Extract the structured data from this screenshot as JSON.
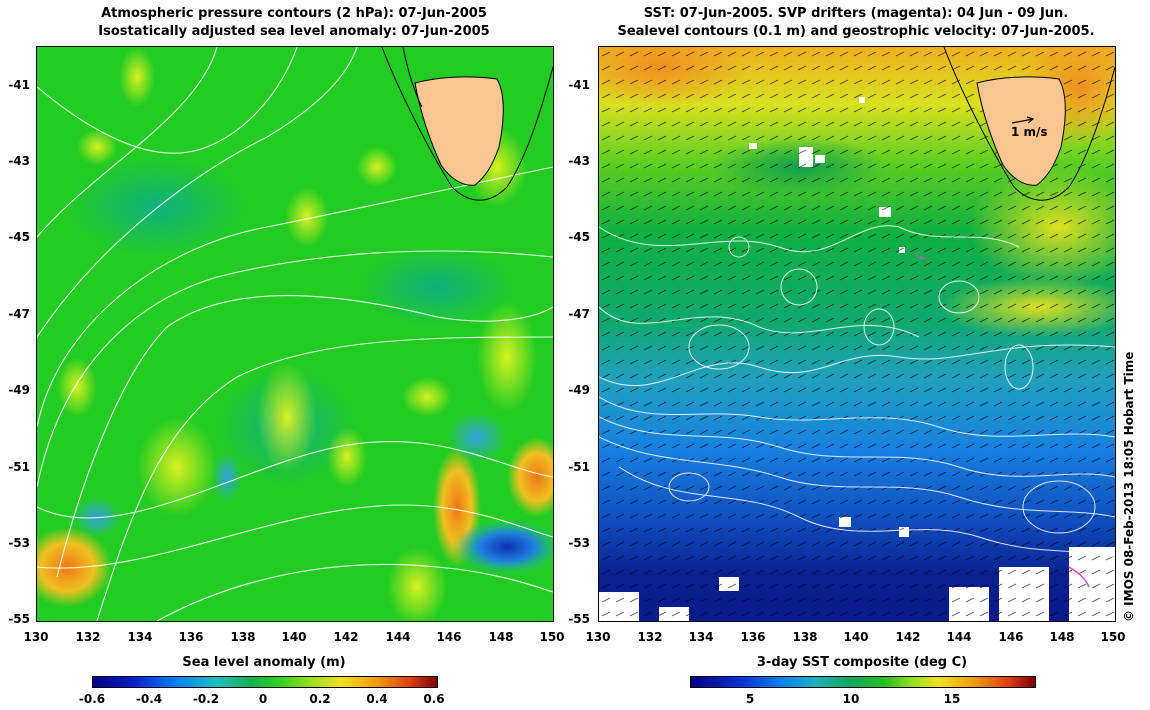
{
  "left_panel": {
    "title_line1": "Atmospheric pressure contours (2 hPa): 07-Jun-2005",
    "title_line2": "Isostatically adjusted sea level anomaly: 07-Jun-2005",
    "y_ticks": [
      "-41",
      "-43",
      "-45",
      "-47",
      "-49",
      "-51",
      "-53",
      "-55"
    ],
    "x_ticks": [
      "130",
      "132",
      "134",
      "136",
      "138",
      "140",
      "142",
      "144",
      "146",
      "148",
      "150"
    ],
    "colorbar_title": "Sea level anomaly (m)",
    "colorbar_ticks": [
      "-0.6",
      "-0.4",
      "-0.2",
      "0",
      "0.2",
      "0.4",
      "0.6"
    ]
  },
  "right_panel": {
    "title_line1": "SST: 07-Jun-2005. SVP drifters (magenta): 04 Jun - 09 Jun.",
    "title_line2": "Sealevel contours (0.1 m) and geostrophic velocity: 07-Jun-2005.",
    "y_ticks": [
      "-41",
      "-43",
      "-45",
      "-47",
      "-49",
      "-51",
      "-53",
      "-55"
    ],
    "x_ticks": [
      "130",
      "132",
      "134",
      "136",
      "138",
      "140",
      "142",
      "144",
      "146",
      "148",
      "150"
    ],
    "velocity_scale_label": "1 m/s",
    "colorbar_title": "3-day SST composite (deg C)",
    "colorbar_ticks": [
      "5",
      "10",
      "15"
    ]
  },
  "credit": "© IMOS 08-Feb-2013 18:05 Hobart Time",
  "colors": {
    "land": "#f9c591",
    "ocean_green": "#22cc22",
    "sst_warm": "#f0a020",
    "sst_cold": "#0a1a8c"
  }
}
